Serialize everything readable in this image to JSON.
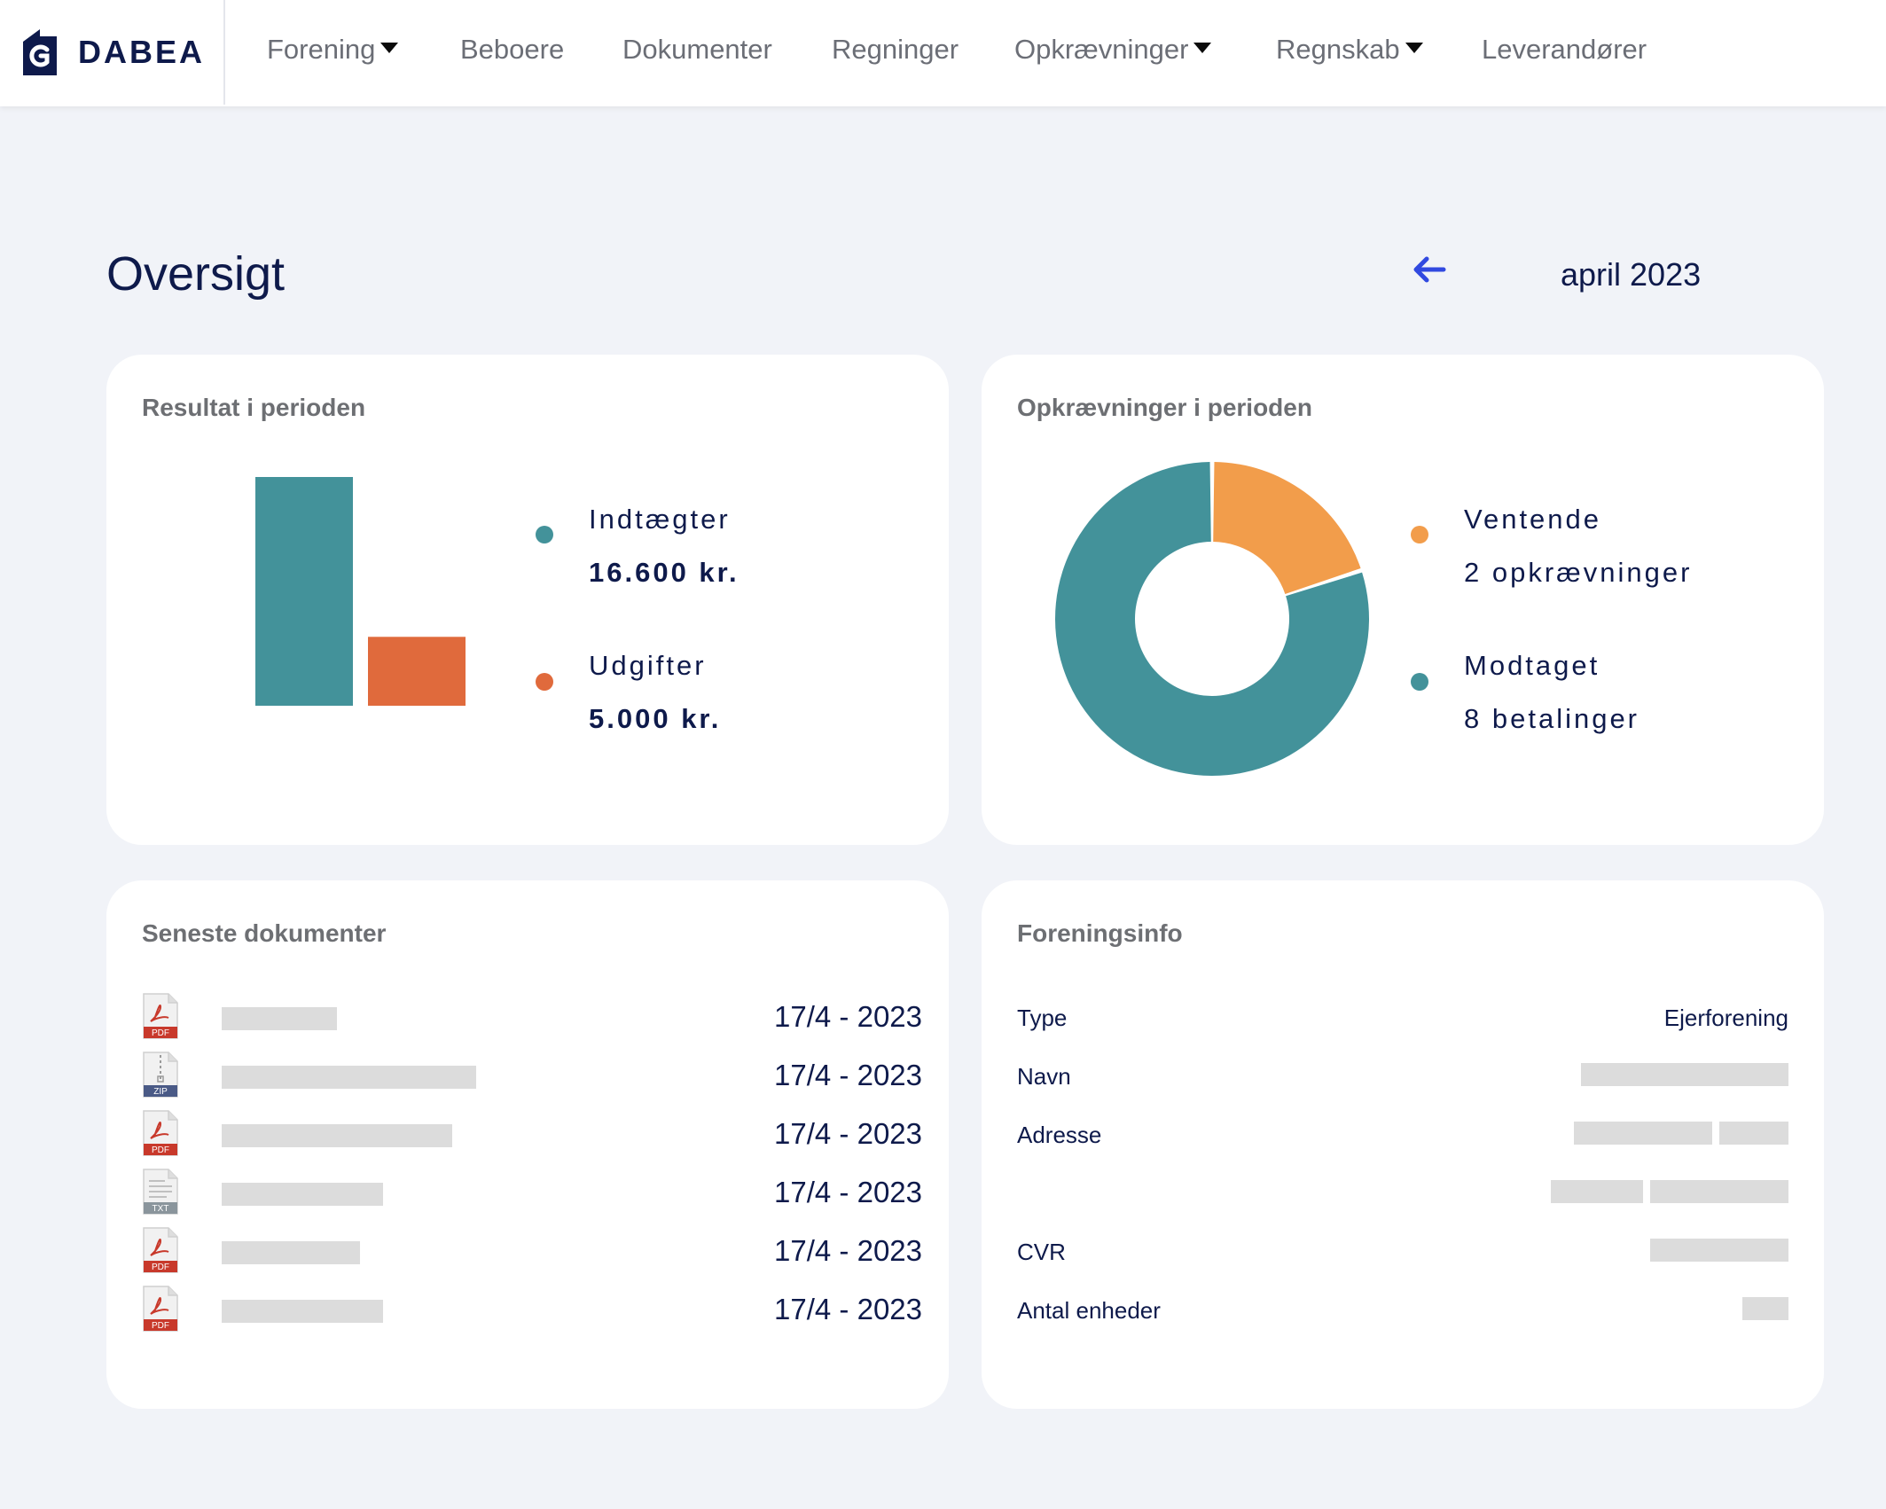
{
  "brand": {
    "name": "DABEA"
  },
  "nav": {
    "items": [
      {
        "label": "Forening",
        "dropdown": true
      },
      {
        "label": "Beboere",
        "dropdown": false
      },
      {
        "label": "Dokumenter",
        "dropdown": false
      },
      {
        "label": "Regninger",
        "dropdown": false
      },
      {
        "label": "Opkrævninger",
        "dropdown": true
      },
      {
        "label": "Regnskab",
        "dropdown": true
      },
      {
        "label": "Leverandører",
        "dropdown": false
      }
    ]
  },
  "page": {
    "title": "Oversigt",
    "period": "april 2023"
  },
  "result_card": {
    "title": "Resultat i perioden",
    "income_label": "Indtægter",
    "income_value": "16.600 kr.",
    "expense_label": "Udgifter",
    "expense_value": "5.000 kr."
  },
  "collections_card": {
    "title": "Opkrævninger i perioden",
    "pending_label": "Ventende",
    "pending_value": "2 opkrævninger",
    "received_label": "Modtaget",
    "received_value": "8 betalinger"
  },
  "chart_data": [
    {
      "type": "bar",
      "categories": [
        "Indtægter",
        "Udgifter"
      ],
      "values": [
        16600,
        5000
      ],
      "colors": [
        "#43929a",
        "#e06a3c"
      ],
      "title": "",
      "xlabel": "",
      "ylabel": "",
      "ylim": [
        0,
        16600
      ]
    },
    {
      "type": "pie",
      "categories": [
        "Ventende",
        "Modtaget"
      ],
      "values": [
        2,
        8
      ],
      "colors": [
        "#f29d4b",
        "#43929a"
      ],
      "title": ""
    }
  ],
  "documents_card": {
    "title": "Seneste dokumenter",
    "items": [
      {
        "type": "PDF",
        "date": "17/4 - 2023"
      },
      {
        "type": "ZIP",
        "date": "17/4 - 2023"
      },
      {
        "type": "PDF",
        "date": "17/4 - 2023"
      },
      {
        "type": "TXT",
        "date": "17/4 - 2023"
      },
      {
        "type": "PDF",
        "date": "17/4 - 2023"
      },
      {
        "type": "PDF",
        "date": "17/4 - 2023"
      }
    ]
  },
  "info_card": {
    "title": "Foreningsinfo",
    "type_label": "Type",
    "type_value": "Ejerforening",
    "name_label": "Navn",
    "address_label": "Adresse",
    "cvr_label": "CVR",
    "units_label": "Antal enheder"
  },
  "colors": {
    "teal": "#43929a",
    "orange": "#e06a3c",
    "light_orange": "#f29d4b",
    "navy": "#0e1a4b",
    "accent_blue": "#3149e0"
  }
}
